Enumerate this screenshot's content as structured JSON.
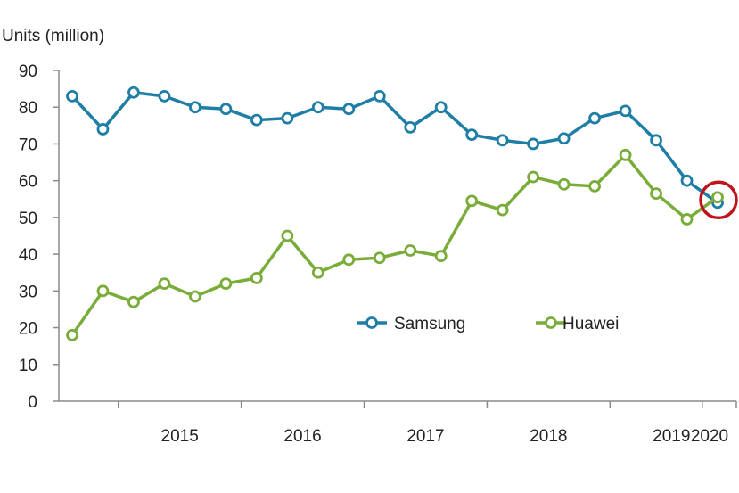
{
  "chart_data": {
    "type": "line",
    "ylabel": "Units (million)",
    "ylim": [
      0,
      90
    ],
    "yticks": [
      "0",
      "10",
      "20",
      "30",
      "40",
      "50",
      "60",
      "70",
      "80",
      "90"
    ],
    "x_year_labels": [
      "2015",
      "2016",
      "2017",
      "2018",
      "2019",
      "2020"
    ],
    "x_quarter_count": 22,
    "grid": false,
    "legend_position": "center-right",
    "series": [
      {
        "name": "Samsung",
        "color": "#1f7ea6",
        "values": [
          83,
          74,
          84,
          83,
          80,
          79.5,
          76.5,
          77,
          80,
          79.5,
          83,
          74.5,
          80,
          72.5,
          71,
          70,
          71.5,
          77,
          79,
          71,
          60,
          54
        ]
      },
      {
        "name": "Huawei",
        "color": "#7aac3a",
        "values": [
          18,
          30,
          27,
          32,
          28.5,
          32,
          33.5,
          45,
          35,
          38.5,
          39,
          41,
          39.5,
          54.5,
          52,
          61,
          59,
          58.5,
          67,
          56.5,
          49.5,
          55.5
        ]
      }
    ],
    "highlight": {
      "marker": "circle",
      "color": "#c0141b",
      "point_index": 21
    }
  }
}
